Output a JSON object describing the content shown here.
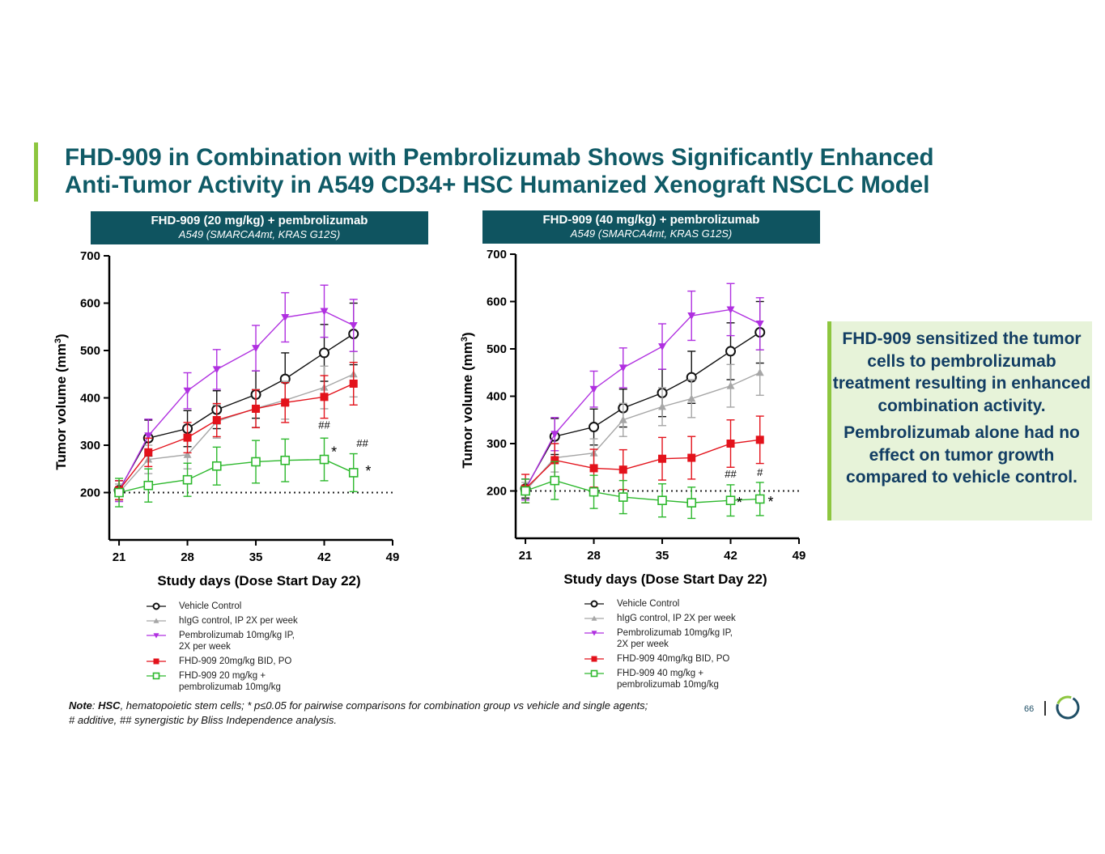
{
  "title": {
    "line1": "FHD-909 in Combination with Pembrolizumab Shows Significantly Enhanced",
    "line2": "Anti-Tumor Activity in A549 CD34+ HSC Humanized Xenograft NSCLC Model"
  },
  "panels": [
    {
      "header": "FHD-909 (20 mg/kg) + pembrolizumab",
      "subheader": "A549 (SMARCA4mt, KRAS G12S)"
    },
    {
      "header": "FHD-909 (40 mg/kg) + pembrolizumab",
      "subheader": "A549 (SMARCA4mt, KRAS G12S)"
    }
  ],
  "legends": [
    {
      "items": [
        {
          "label": "Vehicle Control"
        },
        {
          "label": "hIgG control, IP 2X per week"
        },
        {
          "label": "Pembrolizumab 10mg/kg IP,",
          "label2": "2X per week"
        },
        {
          "label": "FHD-909 20mg/kg BID, PO"
        },
        {
          "label": "FHD-909 20 mg/kg +",
          "label2": "pembrolizumab 10mg/kg"
        }
      ]
    },
    {
      "items": [
        {
          "label": "Vehicle Control"
        },
        {
          "label": "hIgG control, IP 2X per week"
        },
        {
          "label": "Pembrolizumab 10mg/kg IP,",
          "label2": "2X per week"
        },
        {
          "label": "FHD-909 40mg/kg BID, PO"
        },
        {
          "label": "FHD-909 40 mg/kg +",
          "label2": "pembrolizumab 10mg/kg"
        }
      ]
    }
  ],
  "callout": {
    "p1": "FHD-909 sensitized the tumor cells to pembrolizumab treatment resulting in enhanced combination activity.",
    "p2": "Pembrolizumab alone had no effect on tumor growth compared to vehicle control."
  },
  "note": {
    "label": "Note",
    "abbr": "HSC",
    "line1_rest": ", hematopoietic stem cells; * p≤0.05 for pairwise comparisons for combination group vs vehicle and single agents;",
    "line2": "# additive, ## synergistic by Bliss Independence analysis."
  },
  "page_number": "66",
  "colors": {
    "vehicle": "#111111",
    "higg": "#a6a6a6",
    "pembro": "#b030e0",
    "fhd": "#e3121b",
    "combo": "#2db82d",
    "title": "#0f5a66",
    "header_bg": "#0f5460",
    "accent": "#8dc63f"
  },
  "chart_data": [
    {
      "type": "line",
      "title": "FHD-909 (20 mg/kg) + pembrolizumab",
      "xlabel": "Study days (Dose Start Day 22)",
      "ylabel": "Tumor volume (mm3)",
      "xlim": [
        20,
        49
      ],
      "ylim": [
        100,
        700
      ],
      "xticks": [
        21,
        28,
        35,
        42,
        49
      ],
      "yticks": [
        200,
        300,
        400,
        500,
        600,
        700
      ],
      "reference_line_y": 200,
      "series": [
        {
          "name": "Vehicle Control",
          "marker": "circle-open",
          "x": [
            21,
            24,
            28,
            31,
            35,
            38,
            42,
            45
          ],
          "y": [
            205,
            315,
            335,
            375,
            407,
            440,
            495,
            535
          ],
          "err": [
            20,
            38,
            38,
            40,
            50,
            55,
            60,
            65
          ]
        },
        {
          "name": "hIgG control, IP 2X per week",
          "marker": "triangle-up",
          "x": [
            21,
            24,
            28,
            31,
            35,
            38,
            42,
            45
          ],
          "y": [
            200,
            270,
            280,
            350,
            378,
            395,
            422,
            450
          ],
          "err": [
            18,
            30,
            30,
            35,
            40,
            40,
            45,
            48
          ]
        },
        {
          "name": "Pembrolizumab 10mg/kg IP, 2X per week",
          "marker": "triangle-down",
          "x": [
            21,
            24,
            28,
            31,
            35,
            38,
            42,
            45
          ],
          "y": [
            203,
            320,
            415,
            460,
            505,
            570,
            583,
            553
          ],
          "err": [
            22,
            35,
            38,
            42,
            48,
            52,
            55,
            55
          ]
        },
        {
          "name": "FHD-909 20mg/kg BID, PO",
          "marker": "square-filled",
          "x": [
            21,
            24,
            28,
            31,
            35,
            38,
            42,
            45
          ],
          "y": [
            205,
            285,
            316,
            353,
            377,
            390,
            402,
            430
          ],
          "err": [
            20,
            30,
            32,
            35,
            40,
            42,
            45,
            45
          ]
        },
        {
          "name": "FHD-909 20 mg/kg + pembrolizumab 10mg/kg",
          "marker": "square-open",
          "x": [
            21,
            24,
            28,
            31,
            35,
            38,
            42,
            45
          ],
          "y": [
            200,
            215,
            227,
            256,
            265,
            268,
            270,
            242
          ],
          "err": [
            30,
            35,
            35,
            40,
            45,
            45,
            45,
            40
          ]
        }
      ],
      "annotations": [
        {
          "text": "##",
          "x": 42,
          "y": 335
        },
        {
          "text": "*",
          "x": 43,
          "y": 275
        },
        {
          "text": "##",
          "x": 45.9,
          "y": 297
        },
        {
          "text": "*",
          "x": 46.5,
          "y": 235
        }
      ]
    },
    {
      "type": "line",
      "title": "FHD-909 (40 mg/kg) + pembrolizumab",
      "xlabel": "Study days (Dose Start Day 22)",
      "ylabel": "Tumor volume (mm3)",
      "xlim": [
        20,
        49
      ],
      "ylim": [
        100,
        700
      ],
      "xticks": [
        21,
        28,
        35,
        42,
        49
      ],
      "yticks": [
        200,
        300,
        400,
        500,
        600,
        700
      ],
      "reference_line_y": 200,
      "series": [
        {
          "name": "Vehicle Control",
          "marker": "circle-open",
          "x": [
            21,
            24,
            28,
            31,
            35,
            38,
            42,
            45
          ],
          "y": [
            205,
            315,
            335,
            375,
            407,
            440,
            495,
            535
          ],
          "err": [
            20,
            38,
            38,
            40,
            50,
            55,
            60,
            65
          ]
        },
        {
          "name": "hIgG control, IP 2X per week",
          "marker": "triangle-up",
          "x": [
            21,
            24,
            28,
            31,
            35,
            38,
            42,
            45
          ],
          "y": [
            200,
            270,
            280,
            350,
            378,
            395,
            422,
            450
          ],
          "err": [
            18,
            30,
            30,
            35,
            40,
            40,
            45,
            48
          ]
        },
        {
          "name": "Pembrolizumab 10mg/kg IP, 2X per week",
          "marker": "triangle-down",
          "x": [
            21,
            24,
            28,
            31,
            35,
            38,
            42,
            45
          ],
          "y": [
            203,
            320,
            415,
            460,
            505,
            570,
            583,
            553
          ],
          "err": [
            22,
            35,
            38,
            42,
            48,
            52,
            55,
            55
          ]
        },
        {
          "name": "FHD-909 40mg/kg BID, PO",
          "marker": "square-filled",
          "x": [
            21,
            24,
            28,
            31,
            35,
            38,
            42,
            45
          ],
          "y": [
            205,
            265,
            248,
            245,
            268,
            270,
            300,
            308
          ],
          "err": [
            30,
            35,
            40,
            42,
            45,
            45,
            50,
            50
          ]
        },
        {
          "name": "FHD-909 40 mg/kg + pembrolizumab 10mg/kg",
          "marker": "square-open",
          "x": [
            21,
            24,
            28,
            31,
            35,
            38,
            42,
            45
          ],
          "y": [
            200,
            222,
            198,
            187,
            180,
            175,
            180,
            183
          ],
          "err": [
            25,
            40,
            35,
            35,
            35,
            33,
            33,
            35
          ]
        }
      ],
      "annotations": [
        {
          "text": "##",
          "x": 42,
          "y": 228
        },
        {
          "text": "*",
          "x": 42.9,
          "y": 165
        },
        {
          "text": "#",
          "x": 45,
          "y": 232
        },
        {
          "text": "*",
          "x": 46.1,
          "y": 167
        }
      ]
    }
  ]
}
